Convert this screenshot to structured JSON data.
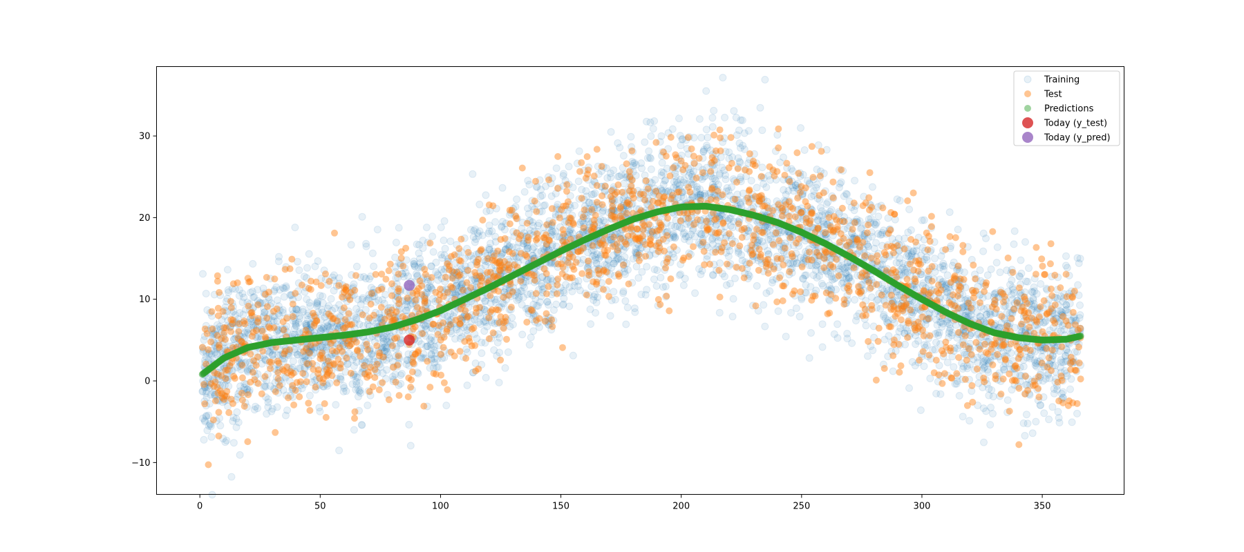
{
  "chart_data": {
    "type": "scatter",
    "title": "",
    "xlabel": "",
    "ylabel": "",
    "xlim": [
      -18,
      384
    ],
    "ylim": [
      -13.9,
      38.5
    ],
    "x_ticks": [
      0,
      50,
      100,
      150,
      200,
      250,
      300,
      350
    ],
    "y_ticks": [
      -10,
      0,
      10,
      20,
      30
    ],
    "x_tick_labels": [
      "0",
      "50",
      "100",
      "150",
      "200",
      "250",
      "300",
      "350"
    ],
    "y_tick_labels": [
      "−10",
      "0",
      "10",
      "20",
      "30"
    ],
    "grid": false,
    "legend_position": "top-right",
    "x_domain": [
      1,
      366
    ],
    "trend_curve": {
      "x": [
        1,
        10,
        20,
        30,
        40,
        50,
        60,
        70,
        80,
        90,
        100,
        110,
        120,
        130,
        140,
        150,
        160,
        170,
        180,
        190,
        200,
        210,
        220,
        230,
        240,
        250,
        260,
        270,
        280,
        290,
        300,
        310,
        320,
        330,
        340,
        350,
        360,
        366
      ],
      "y": [
        0.8,
        2.8,
        4.1,
        4.7,
        5.0,
        5.3,
        5.6,
        6.0,
        6.6,
        7.5,
        8.6,
        10.0,
        11.4,
        12.9,
        14.4,
        15.9,
        17.3,
        18.6,
        19.8,
        20.7,
        21.3,
        21.4,
        21.0,
        20.3,
        19.4,
        18.2,
        16.8,
        15.2,
        13.5,
        11.7,
        10.0,
        8.4,
        7.0,
        5.9,
        5.3,
        5.0,
        5.1,
        5.5
      ]
    },
    "series": [
      {
        "name": "Training",
        "color": "#1f77b4",
        "opacity": 0.1,
        "marker": "circle",
        "count": 4400,
        "noise_sd": 4.5
      },
      {
        "name": "Test",
        "color": "#ff7f0e",
        "opacity": 0.45,
        "marker": "circle",
        "count": 1500,
        "noise_sd": 4.5
      },
      {
        "name": "Predictions",
        "color": "#2ca02c",
        "opacity": 0.45,
        "marker": "circle",
        "count": 1500,
        "noise_sd": 0
      },
      {
        "name": "Today (y_test)",
        "color": "#d62728",
        "opacity": 0.8,
        "marker": "large-circle",
        "points": [
          {
            "x": 87,
            "y": 5.0
          }
        ]
      },
      {
        "name": "Today (y_pred)",
        "color": "#9467bd",
        "opacity": 0.8,
        "marker": "large-circle",
        "points": [
          {
            "x": 87,
            "y": 11.7
          }
        ]
      }
    ]
  }
}
